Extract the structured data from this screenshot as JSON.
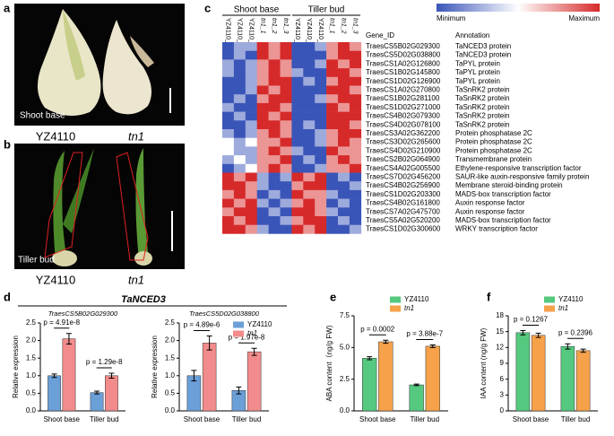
{
  "panel_labels": [
    "a",
    "b",
    "c",
    "d",
    "e",
    "f"
  ],
  "photos": {
    "a": {
      "caption": "Shoot base",
      "labels": [
        "YZ4110",
        "tn1"
      ]
    },
    "b": {
      "caption": "Tiller bud",
      "labels": [
        "YZ4110",
        "tn1"
      ]
    }
  },
  "heatmap": {
    "group_labels": [
      "Shoot base",
      "Tiller bud"
    ],
    "columns": [
      "YZ4110_1",
      "YZ4110_2",
      "YZ4110_3",
      "tn1_1",
      "tn1_2",
      "tn1_3",
      "YZ4110_1",
      "YZ4110_2",
      "YZ4110_3",
      "tn1_1",
      "tn1_2",
      "tn1_3"
    ],
    "gene_id_header": "Gene_ID",
    "annotation_header": "Annotation",
    "min_label": "Minimum",
    "max_label": "Maximum",
    "vlim": [
      -1,
      1
    ],
    "rows": [
      {
        "gene_id": "TraesCS5B02G029300",
        "annotation": "TaNCED3 protein",
        "values": [
          -1,
          -0.5,
          -0.5,
          1,
          0.5,
          1,
          -1,
          -1,
          -0.5,
          0.5,
          1,
          0.5
        ]
      },
      {
        "gene_id": "TraesCS5D02G038800",
        "annotation": "TaNCED3 protein",
        "values": [
          -1,
          -0.5,
          -1,
          1,
          0.5,
          1,
          -1,
          -1,
          -1,
          0.5,
          1,
          1
        ]
      },
      {
        "gene_id": "TraesCS1A02G126800",
        "annotation": "TaPYL protein",
        "values": [
          -0.5,
          -1,
          -0.5,
          0.5,
          1,
          0.5,
          -1,
          -1,
          -0.5,
          1,
          0.5,
          1
        ]
      },
      {
        "gene_id": "TraesCS1B02G145800",
        "annotation": "TaPYL protein",
        "values": [
          -0.5,
          -1,
          -0.5,
          0.5,
          1,
          0.5,
          -0.5,
          -1,
          -1,
          1,
          1,
          0.5
        ]
      },
      {
        "gene_id": "TraesCS1D02G126900",
        "annotation": "TaPYL protein",
        "values": [
          -1,
          -1,
          -0.5,
          0.5,
          1,
          1,
          -1,
          -0.5,
          -1,
          0.5,
          1,
          1
        ]
      },
      {
        "gene_id": "TraesCS1A02G270800",
        "annotation": "TaSnRK2 protein",
        "values": [
          -1,
          -1,
          -0.5,
          1,
          0.5,
          1,
          -1,
          -1,
          -1,
          1,
          1,
          0.5
        ]
      },
      {
        "gene_id": "TraesCS1B02G281100",
        "annotation": "TaSnRK2 protein",
        "values": [
          -1,
          -0.5,
          -1,
          0.5,
          1,
          1,
          -1,
          -1,
          -0.5,
          0.5,
          1,
          1
        ]
      },
      {
        "gene_id": "TraesCS1D02G271000",
        "annotation": "TaSnRK2 protein",
        "values": [
          -0.5,
          -1,
          -1,
          1,
          1,
          0.5,
          -1,
          -1,
          -1,
          1,
          0.5,
          1
        ]
      },
      {
        "gene_id": "TraesCS4B02G079300",
        "annotation": "TaSnRK2 protein",
        "values": [
          -1,
          -0.5,
          -1,
          1,
          0.5,
          1,
          -1,
          -1,
          -1,
          1,
          1,
          1
        ]
      },
      {
        "gene_id": "TraesCS4D02G078100",
        "annotation": "TaSnRK2 protein",
        "values": [
          -1,
          -1,
          -0.5,
          1,
          1,
          0.5,
          -1,
          -0.5,
          -1,
          1,
          1,
          0.5
        ]
      },
      {
        "gene_id": "TraesCS3A02G362200",
        "annotation": "Protein phosphatase 2C",
        "values": [
          -0.5,
          -1,
          -0.5,
          0.5,
          1,
          0.5,
          -1,
          -1,
          -0.5,
          0.5,
          1,
          1
        ]
      },
      {
        "gene_id": "TraesCS3D02G265600",
        "annotation": "Protein phosphatase 2C",
        "values": [
          0,
          -0.5,
          0,
          0.5,
          0.5,
          1,
          -1,
          -1,
          -0.5,
          0.5,
          1,
          0.5
        ]
      },
      {
        "gene_id": "TraesCS4D02G210900",
        "annotation": "Protein phosphatase 2C",
        "values": [
          0,
          -0.5,
          -0.5,
          0.5,
          1,
          0.5,
          -0.5,
          -1,
          -1,
          1,
          0.5,
          0.5
        ]
      },
      {
        "gene_id": "TraesCS2B02G064900",
        "annotation": "Transmembrane protein",
        "values": [
          -0.5,
          0,
          -0.5,
          0.5,
          0.5,
          1,
          -1,
          -0.5,
          -1,
          0.5,
          1,
          0.5
        ]
      },
      {
        "gene_id": "TraesCS4A02G005500",
        "annotation": "Ethylene-responsive transcription factor",
        "values": [
          -1,
          -0.5,
          0,
          0.5,
          1,
          0.5,
          -1,
          -1,
          -0.5,
          0.5,
          0.5,
          1
        ]
      },
      {
        "gene_id": "TraesCS7D02G456200",
        "annotation": "SAUR-like auxin-responsive family protein",
        "values": [
          1,
          0.5,
          1,
          -0.5,
          -1,
          -0.5,
          1,
          0.5,
          1,
          -1,
          -0.5,
          -1
        ]
      },
      {
        "gene_id": "TraesCS4B02G256900",
        "annotation": "Membrane steroid-binding protein",
        "values": [
          1,
          1,
          0.5,
          -0.5,
          -1,
          -1,
          0.5,
          1,
          1,
          -1,
          -1,
          -0.5
        ]
      },
      {
        "gene_id": "TraesCS1D02G203300",
        "annotation": "MADS-box transcription factor",
        "values": [
          0.5,
          1,
          0.5,
          -1,
          -0.5,
          -1,
          1,
          0.5,
          0.5,
          -0.5,
          -1,
          -1
        ]
      },
      {
        "gene_id": "TraesCS4B02G161800",
        "annotation": "Auxin response factor",
        "values": [
          1,
          0.5,
          1,
          -0.5,
          -1,
          -0.5,
          0.5,
          1,
          0.5,
          -1,
          -0.5,
          -1
        ]
      },
      {
        "gene_id": "TraesCS7A02G475700",
        "annotation": "Auxin response factor",
        "values": [
          0.5,
          1,
          1,
          -1,
          -0.5,
          -1,
          1,
          1,
          0.5,
          -0.5,
          -1,
          -1
        ]
      },
      {
        "gene_id": "TraesCS5A02G520200",
        "annotation": "MADS-box transcription factor",
        "values": [
          1,
          0.5,
          1,
          -1,
          -1,
          -0.5,
          0.5,
          1,
          1,
          -1,
          -0.5,
          -1
        ]
      },
      {
        "gene_id": "TraesCS1D02G300600",
        "annotation": "WRKY transcription factor",
        "values": [
          1,
          1,
          0.5,
          -0.5,
          -1,
          -1,
          1,
          0.5,
          1,
          -1,
          -1,
          -0.5
        ]
      }
    ]
  },
  "d_title": "TaNCED3",
  "chart_data": [
    {
      "type": "bar",
      "subtitle": "TraesCS5B02G029300",
      "y_label": "Relative expression",
      "categories": [
        "Shoot base",
        "Tiller bud"
      ],
      "series": [
        {
          "color": "#6b9fd8",
          "values": [
            1.0,
            0.52
          ],
          "errors": [
            0.05,
            0.04
          ]
        },
        {
          "color": "#f28b8b",
          "values": [
            2.05,
            1.0
          ],
          "errors": [
            0.15,
            0.07
          ]
        }
      ],
      "p_values": [
        "p = 4.91e-8",
        "p = 1.29e-8"
      ],
      "ylim": [
        0,
        2.5
      ],
      "yticks": [
        {
          "value": 0,
          "label": "0.0"
        },
        0.5,
        {
          "value": 1,
          "label": "1.0"
        },
        1.5,
        {
          "value": 2,
          "label": "2.0"
        },
        2.5
      ]
    },
    {
      "type": "bar",
      "subtitle": "TraesCS5D02G038800",
      "y_label": "Relative expression",
      "categories": [
        "Shoot base",
        "Tiller bud"
      ],
      "series": [
        {
          "name": "YZ4110",
          "color": "#6b9fd8",
          "values": [
            1.0,
            0.58
          ],
          "errors": [
            0.15,
            0.1
          ]
        },
        {
          "name": "tn1",
          "color": "#f28b8b",
          "values": [
            1.93,
            1.68
          ],
          "errors": [
            0.2,
            0.1
          ]
        }
      ],
      "p_values": [
        "p = 4.89e-6",
        "p = 1.97e-8"
      ],
      "legend": "top-right",
      "ylim": [
        0,
        2.5
      ],
      "yticks": [
        {
          "value": 0,
          "label": "0.0"
        },
        0.5,
        {
          "value": 1,
          "label": "1.0"
        },
        1.5,
        {
          "value": 2,
          "label": "2.0"
        },
        2.5
      ]
    },
    {
      "type": "bar",
      "y_label": "ABA content（ng/g FW)",
      "categories": [
        "Shoot base",
        "Tiller bud"
      ],
      "series": [
        {
          "name": "YZ4110",
          "color": "#55c97f",
          "values": [
            4.15,
            2.05
          ],
          "errors": [
            0.12,
            0.06
          ]
        },
        {
          "name": "tn1",
          "color": "#f6a24b",
          "values": [
            5.45,
            5.1
          ],
          "errors": [
            0.12,
            0.1
          ]
        }
      ],
      "p_values": [
        "p = 0.0002",
        "p = 3.88e-7"
      ],
      "legend": "top",
      "ylim": [
        0,
        7.5
      ],
      "yticks": [
        {
          "value": 0,
          "label": "0.0"
        },
        2.5,
        {
          "value": 5,
          "label": "5.0"
        },
        7.5
      ]
    },
    {
      "type": "bar",
      "y_label": "IAA content (ng/g FW)",
      "categories": [
        "Shoot base",
        "Tiller bud"
      ],
      "series": [
        {
          "name": "YZ4110",
          "color": "#55c97f",
          "values": [
            14.8,
            12.2
          ],
          "errors": [
            0.4,
            0.5
          ]
        },
        {
          "name": "tn1",
          "color": "#f6a24b",
          "values": [
            14.3,
            11.4
          ],
          "errors": [
            0.4,
            0.3
          ]
        }
      ],
      "p_values": [
        "p = 0.1267",
        "p = 0.2396"
      ],
      "legend": "top",
      "ylim": [
        0,
        18
      ],
      "yticks": [
        0,
        3,
        6,
        9,
        12,
        15,
        18
      ]
    }
  ]
}
